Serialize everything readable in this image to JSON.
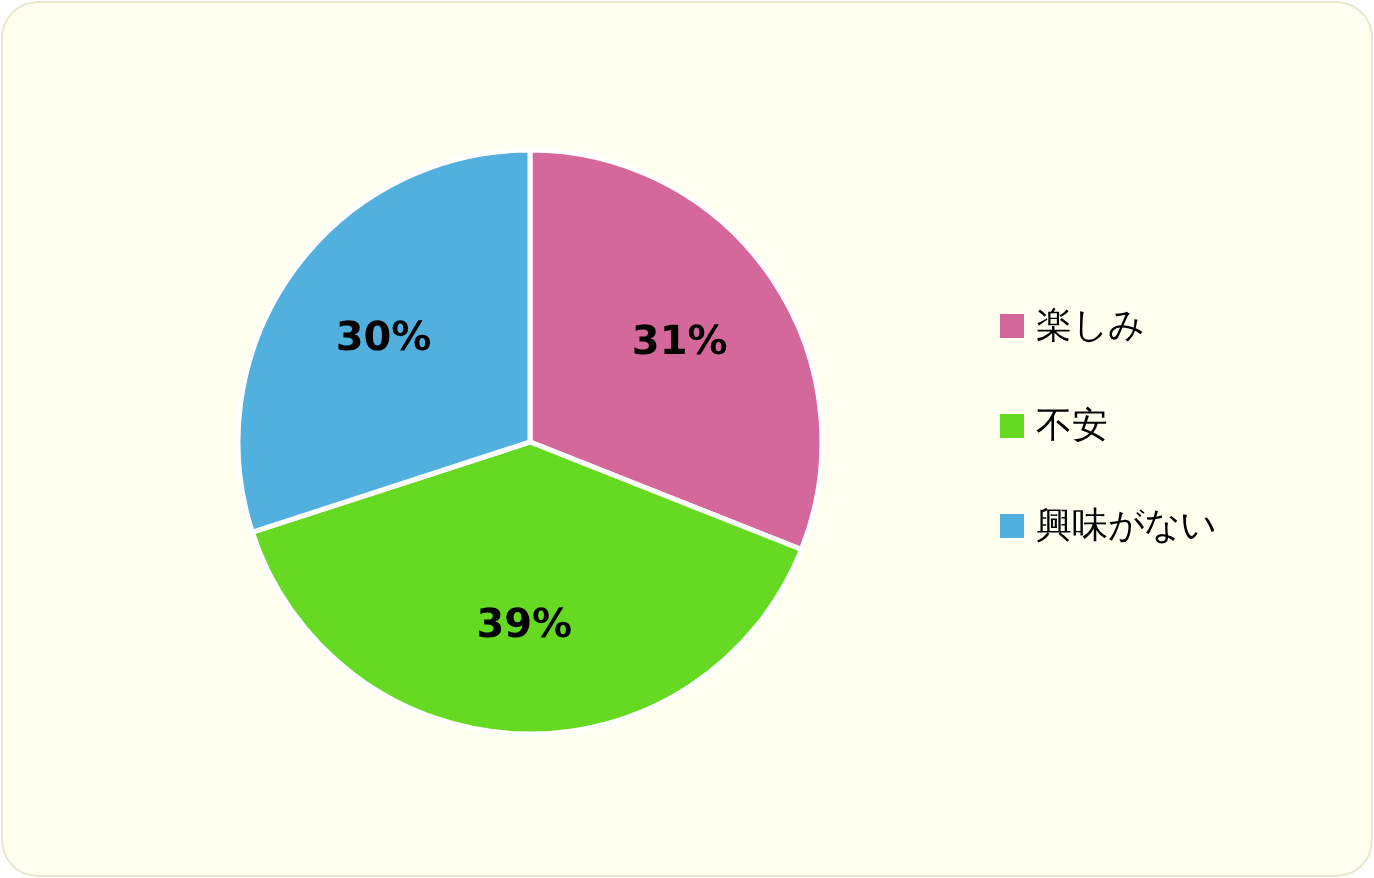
{
  "chart_data": {
    "type": "pie",
    "categories": [
      "楽しみ",
      "不安",
      "興味がない"
    ],
    "values": [
      31,
      39,
      30
    ],
    "colors": [
      "#d5689a",
      "#66d923",
      "#52b0de"
    ],
    "value_labels": [
      "31%",
      "39%",
      "30%"
    ],
    "legend": "right"
  }
}
